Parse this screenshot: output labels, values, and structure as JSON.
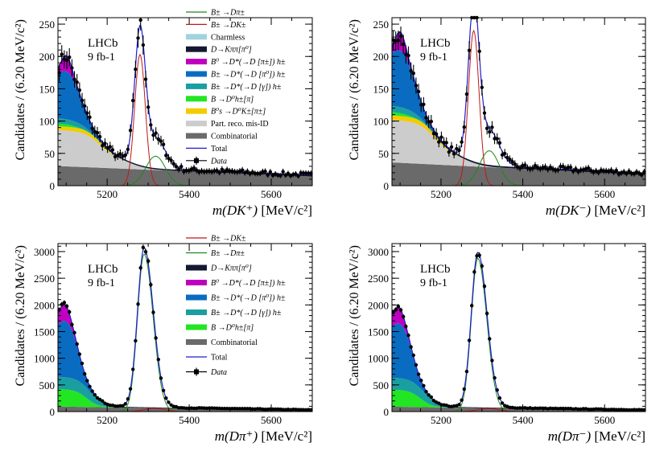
{
  "chart_data": [
    {
      "type": "histogram-fit",
      "panel": "top-left",
      "experiment": "LHCb",
      "luminosity": "9 fb-1",
      "ylabel": "Candidates / (6.20 MeV/c²)",
      "xlabel_main": "m(DK⁺)",
      "xlabel_unit": " [MeV/c²]",
      "xlim": [
        5080,
        5700
      ],
      "ylim": [
        0,
        260
      ],
      "xticks": [
        5200,
        5400,
        5600
      ],
      "yticks": [
        0,
        50,
        100,
        150,
        200,
        250
      ],
      "signal_mode": "DK",
      "peak_height": 203,
      "legend": [
        "B± →Dπ±",
        "B± →DK±",
        "Charmless",
        "D→Kππ[π⁰]",
        "B⁰ →D*(→D [π±]) h±",
        "B± →D*(→D [π⁰]) h±",
        "B± →D*(→D [γ]) h±",
        "B →D⁰h±[π]",
        "B⁰s →D⁰K±[π±]",
        "Part. reco. mis-ID",
        "Combinatorial",
        "Total",
        "Data"
      ]
    },
    {
      "type": "histogram-fit",
      "panel": "top-right",
      "experiment": "LHCb",
      "luminosity": "9 fb-1",
      "ylabel": "Candidates / (6.20 MeV/c²)",
      "xlabel_main": "m(DK⁻)",
      "xlabel_unit": " [MeV/c²]",
      "xlim": [
        5080,
        5700
      ],
      "ylim": [
        0,
        260
      ],
      "xticks": [
        5200,
        5400,
        5600
      ],
      "yticks": [
        0,
        50,
        100,
        150,
        200,
        250
      ],
      "signal_mode": "DK",
      "peak_height": 240
    },
    {
      "type": "histogram-fit",
      "panel": "bottom-left",
      "experiment": "LHCb",
      "luminosity": "9 fb-1",
      "ylabel": "Candidates / (6.20 MeV/c²)",
      "xlabel_main": "m(Dπ⁺)",
      "xlabel_unit": " [MeV/c²]",
      "xlim": [
        5080,
        5700
      ],
      "ylim": [
        0,
        3150
      ],
      "xticks": [
        5200,
        5400,
        5600
      ],
      "yticks": [
        0,
        500,
        1000,
        1500,
        2000,
        2500,
        3000
      ],
      "signal_mode": "Dpi",
      "peak_height": 2950,
      "legend": [
        "B± →DK±",
        "B± →Dπ±",
        "D→Kππ[π⁰]",
        "B⁰ →D*(→D [π±]) h±",
        "B± →D*(→D [π⁰]) h±",
        "B± →D*(→D [γ]) h±",
        "B →D⁰h±[π]",
        "Combinatorial",
        "Total",
        "Data"
      ]
    },
    {
      "type": "histogram-fit",
      "panel": "bottom-right",
      "experiment": "LHCb",
      "luminosity": "9 fb-1",
      "ylabel": "Candidates / (6.20 MeV/c²)",
      "xlabel_main": "m(Dπ⁻)",
      "xlabel_unit": " [MeV/c²]",
      "xlim": [
        5080,
        5700
      ],
      "ylim": [
        0,
        3150
      ],
      "xticks": [
        5200,
        5400,
        5600
      ],
      "yticks": [
        0,
        500,
        1000,
        1500,
        2000,
        2500,
        3000
      ],
      "signal_mode": "Dpi",
      "peak_height": 2870
    }
  ],
  "colors": {
    "dpi": "#1a8a1a",
    "dk": "#c01818",
    "charmless": "#9fd3e0",
    "kpipi": "#141832",
    "b0dstar": "#c000c0",
    "dstar_pi0": "#0a6cc0",
    "dstar_gamma": "#1a9fa0",
    "d0h": "#22e622",
    "bs": "#f2cc00",
    "partreco": "#cccccc",
    "combinatorial": "#6a6a6a",
    "total": "#1f1fd0",
    "data": "#000000"
  }
}
